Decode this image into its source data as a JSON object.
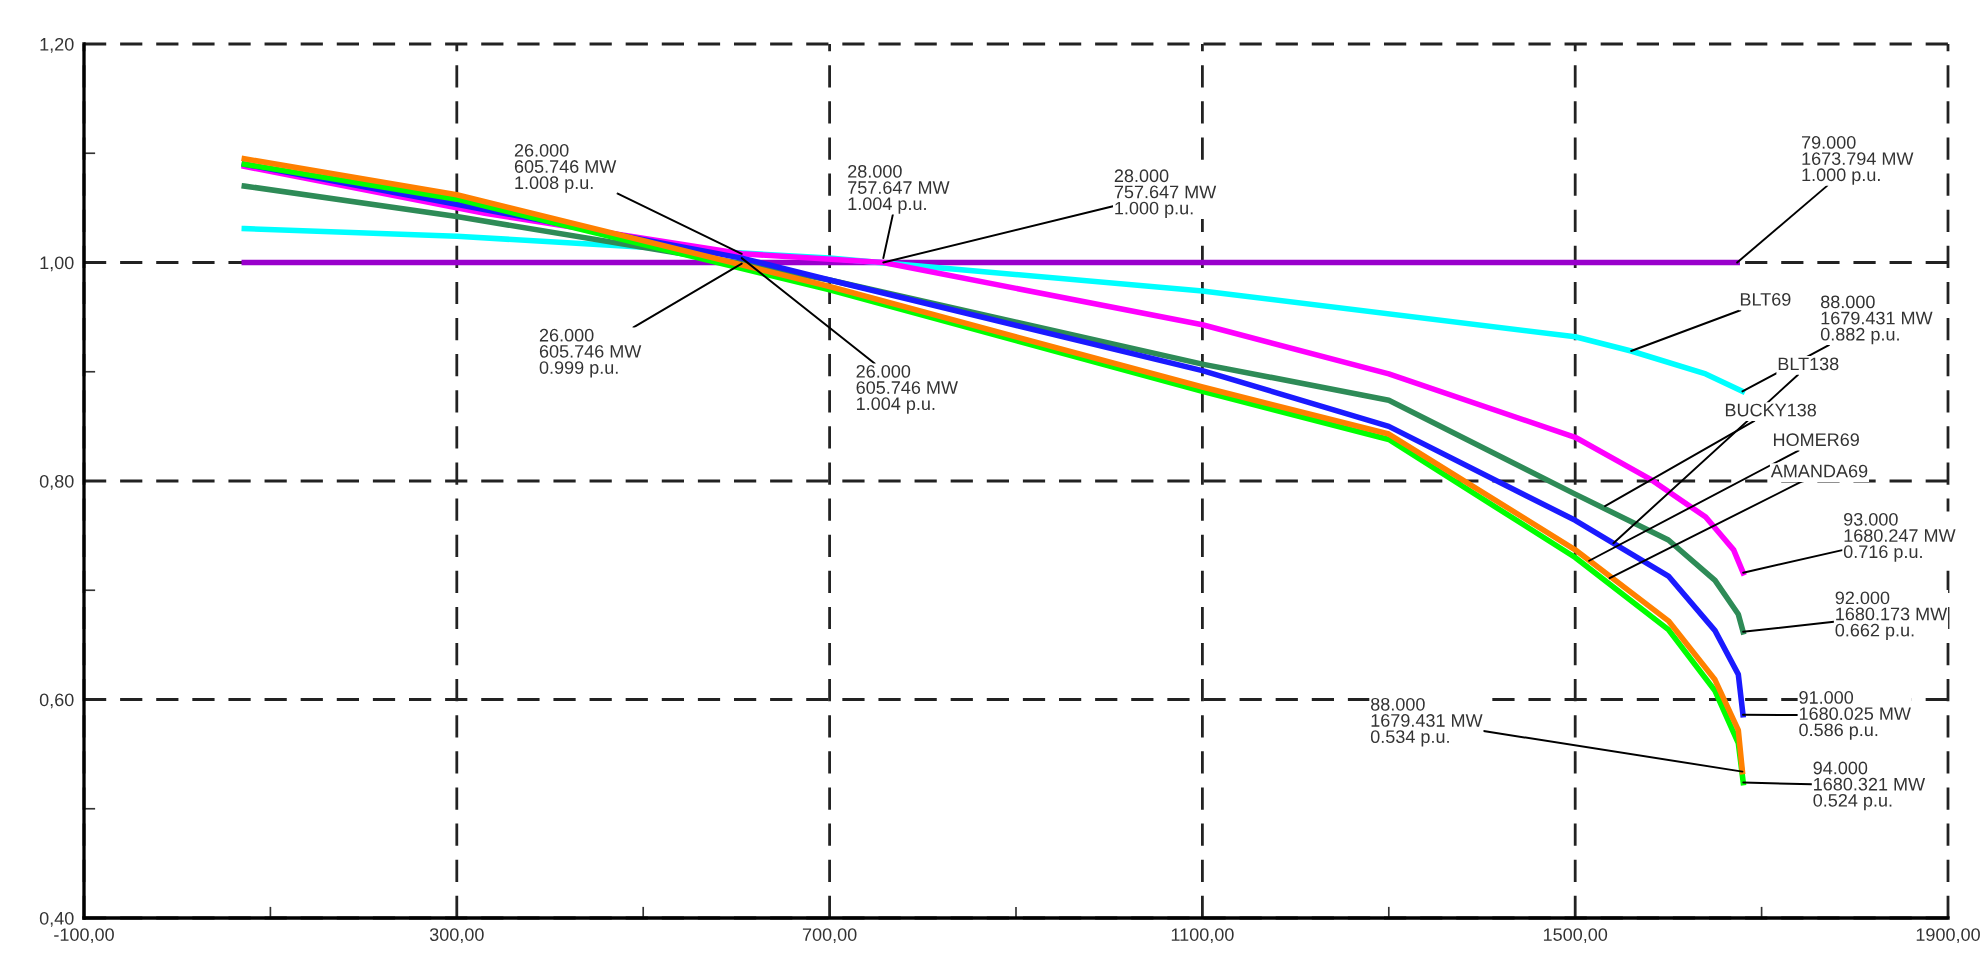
{
  "chart_data": {
    "type": "line",
    "xlim": [
      -100,
      1900
    ],
    "xticks": [
      {
        "value": -100,
        "label": "-100,00"
      },
      {
        "value": 100,
        "label": null
      },
      {
        "value": 300,
        "label": "300,00"
      },
      {
        "value": 500,
        "label": null
      },
      {
        "value": 700,
        "label": "700,00"
      },
      {
        "value": 900,
        "label": null
      },
      {
        "value": 1100,
        "label": "1100,00"
      },
      {
        "value": 1300,
        "label": null
      },
      {
        "value": 1500,
        "label": "1500,00"
      },
      {
        "value": 1700,
        "label": null
      },
      {
        "value": 1900,
        "label": "1900,00"
      }
    ],
    "ylim": [
      0.4,
      1.2
    ],
    "yticks": [
      {
        "value": 0.4,
        "label": "0,40"
      },
      {
        "value": 0.5,
        "label": null
      },
      {
        "value": 0.6,
        "label": "0,60"
      },
      {
        "value": 0.7,
        "label": null
      },
      {
        "value": 0.8,
        "label": "0,80"
      },
      {
        "value": 0.9,
        "label": null
      },
      {
        "value": 1.0,
        "label": "1,00"
      },
      {
        "value": 1.1,
        "label": null
      },
      {
        "value": 1.2,
        "label": "1,20"
      }
    ],
    "grid": true,
    "marker": "none",
    "series": [
      {
        "color": "#9900cc",
        "x": [
          72,
          1673.794
        ],
        "values": [
          1.0,
          1.0
        ]
      },
      {
        "color": "#00ffff",
        "x": [
          72,
          300,
          700,
          1100,
          1500,
          1560,
          1640,
          1679.431
        ],
        "values": [
          1.031,
          1.024,
          1.004,
          0.974,
          0.932,
          0.919,
          0.898,
          0.882
        ]
      },
      {
        "color": "#ff00ff",
        "x": [
          72,
          330,
          605.746,
          757.647,
          1100,
          1300,
          1500,
          1580,
          1640,
          1670,
          1680.247
        ],
        "values": [
          1.088,
          1.045,
          1.008,
          1.0,
          0.943,
          0.898,
          0.84,
          0.802,
          0.767,
          0.737,
          0.716
        ]
      },
      {
        "color": "#2e8b57",
        "x": [
          72,
          300,
          605.746,
          700,
          1100,
          1300,
          1500,
          1600,
          1650,
          1675,
          1680.173
        ],
        "values": [
          1.07,
          1.042,
          0.999,
          0.984,
          0.907,
          0.874,
          0.788,
          0.746,
          0.709,
          0.678,
          0.662
        ]
      },
      {
        "color": "#1a1aff",
        "x": [
          72,
          605.746,
          700,
          1100,
          1300,
          1500,
          1600,
          1650,
          1675,
          1680.025
        ],
        "values": [
          1.09,
          1.004,
          0.984,
          0.901,
          0.85,
          0.764,
          0.713,
          0.663,
          0.623,
          0.586
        ]
      },
      {
        "color": "#00ff00",
        "x": [
          72,
          300,
          700,
          1100,
          1300,
          1500,
          1600,
          1650,
          1675,
          1680.321
        ],
        "values": [
          1.09,
          1.058,
          0.975,
          0.882,
          0.838,
          0.73,
          0.664,
          0.608,
          0.56,
          0.524
        ]
      },
      {
        "color": "#ff8000",
        "x": [
          72,
          300,
          700,
          1100,
          1300,
          1500,
          1600,
          1650,
          1675,
          1679.431
        ],
        "values": [
          1.095,
          1.062,
          0.978,
          0.886,
          0.843,
          0.737,
          0.672,
          0.618,
          0.572,
          0.534
        ]
      }
    ],
    "annotations": [
      {
        "text": "26.000\n605.746 MW\n1.008 p.u.",
        "x": 605.746,
        "y": 1.008
      },
      {
        "text": "28.000\n757.647 MW\n1.004 p.u.",
        "x": 757.647,
        "y": 1.004
      },
      {
        "text": "28.000\n757.647 MW\n1.000 p.u.",
        "x": 757.647,
        "y": 1.0
      },
      {
        "text": "26.000\n605.746 MW\n0.999 p.u.",
        "x": 605.746,
        "y": 0.999
      },
      {
        "text": "26.000\n605.746 MW\n1.004 p.u.",
        "x": 605.746,
        "y": 1.004
      },
      {
        "text": "79.000\n1673.794 MW\n1.000 p.u.",
        "x": 1673.794,
        "y": 1.0
      },
      {
        "text": "88.000\n1679.431 MW\n0.882 p.u.",
        "x": 1679.431,
        "y": 0.882
      },
      {
        "text": "93.000\n1680.247 MW\n0.716 p.u.",
        "x": 1680.247,
        "y": 0.716
      },
      {
        "text": "92.000\n1680.173 MW\n0.662 p.u.",
        "x": 1680.173,
        "y": 0.662
      },
      {
        "text": "91.000\n1680.025 MW\n0.586 p.u.",
        "x": 1680.025,
        "y": 0.586
      },
      {
        "text": "88.000\n1679.431 MW\n0.534 p.u.",
        "x": 1679.431,
        "y": 0.534
      },
      {
        "text": "94.000\n1680.321 MW\n0.524 p.u.",
        "x": 1680.321,
        "y": 0.524
      },
      {
        "text": "BLT69",
        "x": 1560,
        "y": 0.919
      },
      {
        "text": "BLT138",
        "x": 1541,
        "y": 0.743
      },
      {
        "text": "BUCKY138",
        "x": 1532,
        "y": 0.777
      },
      {
        "text": "HOMER69",
        "x": 1515,
        "y": 0.727
      },
      {
        "text": "AMANDA69",
        "x": 1537,
        "y": 0.711
      }
    ]
  }
}
